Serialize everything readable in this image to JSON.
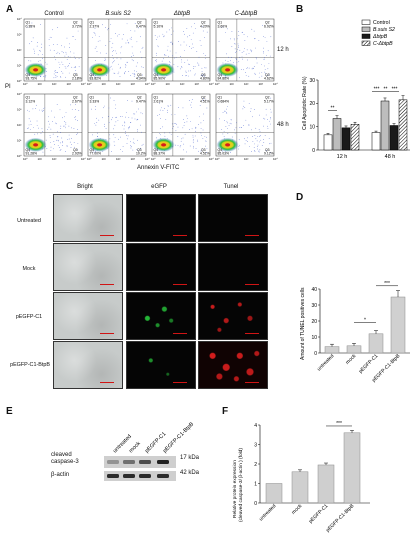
{
  "panels": {
    "A": {
      "letter": "A",
      "columns": [
        "Control",
        "B.suis S2",
        "ΔbtpB",
        "C-ΔbtpB"
      ],
      "rows": [
        "12 h",
        "48 h"
      ],
      "y_axis_label": "PI",
      "x_axis_label": "Annexin V-FITC",
      "quadrant_values": [
        [
          {
            "q1": "0.35%",
            "q2": "3.72%",
            "q3": "2.18%",
            "q4": "93.75%"
          },
          {
            "q1": "2.37%",
            "q2": "9.47%",
            "q3": "4.34%",
            "q4": "83.82%"
          },
          {
            "q1": "5.10%",
            "q2": "4.20%",
            "q3": "4.80%",
            "q4": "85.90%"
          },
          {
            "q1": "3.60%",
            "q2": "6.92%",
            "q3": "4.62%",
            "q4": "84.86%"
          }
        ],
        [
          {
            "q1": "3.12%",
            "q2": "2.67%",
            "q3": "2.93%",
            "q4": "91.28%"
          },
          {
            "q1": "3.33%",
            "q2": "9.47%",
            "q3": "10.2%",
            "q4": "77.00%"
          },
          {
            "q1": "2.61%",
            "q2": "4.51%",
            "q3": "4.51%",
            "q4": "88.37%"
          },
          {
            "q1": "0.684%",
            "q2": "5.17%",
            "q3": "9.12%",
            "q4": "85.03%"
          }
        ]
      ],
      "tick_labels": [
        "10⁰",
        "10¹",
        "10²",
        "10³",
        "10⁴"
      ]
    },
    "B": {
      "letter": "B",
      "chart_data": {
        "type": "bar",
        "categories": [
          "12 h",
          "48 h"
        ],
        "series": [
          {
            "name": "Control",
            "values": [
              6.5,
              7.5
            ],
            "errors": [
              0.6,
              0.6
            ]
          },
          {
            "name": "B.suis S2",
            "values": [
              13.5,
              21.0
            ],
            "errors": [
              1.2,
              1.3
            ]
          },
          {
            "name": "ΔbtpB",
            "values": [
              9.5,
              10.5
            ],
            "errors": [
              0.8,
              0.8
            ]
          },
          {
            "name": "C-ΔbtpB",
            "values": [
              11.0,
              21.5
            ],
            "errors": [
              0.9,
              1.8
            ]
          }
        ],
        "ylabel": "Cell Apoptotic Rate (%)",
        "ylim": [
          0,
          30
        ],
        "yticks": [
          "0",
          "10",
          "20",
          "30"
        ],
        "significance": [
          "**",
          "**",
          "***",
          "***"
        ],
        "legend_position": "top-right"
      }
    },
    "C": {
      "letter": "C",
      "columns": [
        "Bright",
        "eGFP",
        "Tunel"
      ],
      "rows": [
        "Untreated",
        "Mock",
        "pEGFP-C1",
        "pEGFP-C1-BtpB"
      ]
    },
    "D": {
      "letter": "D",
      "chart_data": {
        "type": "bar",
        "categories": [
          "untreated",
          "mock",
          "pEGFP-C1",
          "pEGFP-C1-BtpB"
        ],
        "values": [
          4.0,
          4.5,
          12.0,
          35.0
        ],
        "errors": [
          1.5,
          1.5,
          2.0,
          4.0
        ],
        "ylabel": "Amount of TUNEL positives cells",
        "ylim": [
          0,
          40
        ],
        "yticks": [
          "0",
          "10",
          "20",
          "30",
          "40"
        ],
        "significance": [
          "*",
          "***"
        ]
      }
    },
    "E": {
      "letter": "E",
      "lanes": [
        "untreated",
        "mock",
        "pEGFP-C1",
        "pEGFP-C1-BtpB"
      ],
      "bands": [
        {
          "label": "cleaved caspase-3",
          "size": "17 kDa"
        },
        {
          "label": "β-actin",
          "size": "42 kDa"
        }
      ]
    },
    "F": {
      "letter": "F",
      "chart_data": {
        "type": "bar",
        "categories": [
          "untreated",
          "mock",
          "pEGFP-C1",
          "pEGFP-C1-BtpB"
        ],
        "values": [
          1.0,
          1.6,
          1.95,
          3.6
        ],
        "errors": [
          0.0,
          0.1,
          0.1,
          0.12
        ],
        "ylabel": "Relative protein expression (cleaved caspase-3/ β-actin ) (fold)",
        "ylim": [
          0,
          4
        ],
        "yticks": [
          "0",
          "1",
          "2",
          "3",
          "4"
        ],
        "significance": [
          "***"
        ]
      }
    }
  }
}
